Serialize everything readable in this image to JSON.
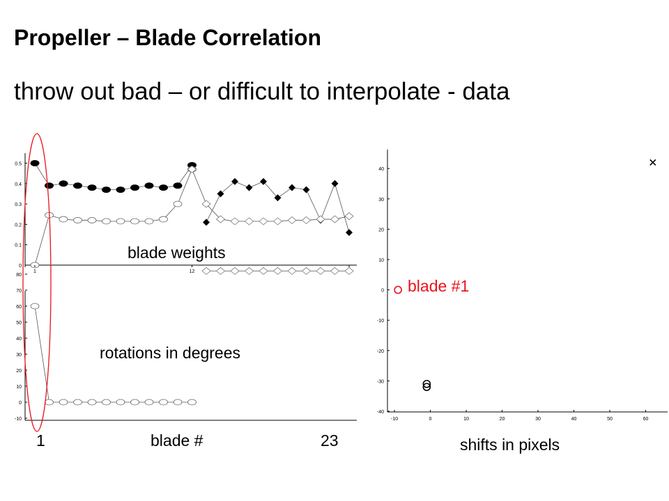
{
  "slide": {
    "title": "Propeller – Blade Correlation",
    "subtitle": "throw out bad – or difficult to interpolate - data"
  },
  "labels": {
    "weights": "blade weights",
    "rotations": "rotations in degrees",
    "blade_axis": "blade #",
    "first_blade": "1",
    "last_blade": "23",
    "shifts": "shifts  in pixels",
    "highlight": "blade #1"
  },
  "colors": {
    "highlight": "#e8141c",
    "ink": "#000000",
    "line": "#555555"
  },
  "chart_data": [
    {
      "type": "line",
      "label": "blade weights",
      "x_ticks": [
        1,
        12,
        23
      ],
      "yticks": [
        0,
        0.1,
        0.2,
        0.3,
        0.4,
        0.5
      ],
      "ylim": [
        0,
        0.5
      ],
      "series": [
        {
          "marker": "filled-circle",
          "x": [
            1,
            2,
            3,
            4,
            5,
            6,
            7,
            8,
            9,
            10,
            11,
            12
          ],
          "values": [
            0.5,
            0.39,
            0.4,
            0.39,
            0.38,
            0.37,
            0.37,
            0.38,
            0.39,
            0.38,
            0.39,
            0.49
          ]
        },
        {
          "marker": "open-circle",
          "x": [
            1,
            2,
            3,
            4,
            5,
            6,
            7,
            8,
            9,
            10,
            11,
            12
          ],
          "values": [
            0,
            0.245,
            0.225,
            0.22,
            0.22,
            0.215,
            0.215,
            0.215,
            0.215,
            0.225,
            0.3,
            0.47
          ]
        },
        {
          "marker": "filled-diamond",
          "x": [
            13,
            14,
            15,
            16,
            17,
            18,
            19,
            20,
            21,
            22,
            23
          ],
          "values": [
            0.21,
            0.35,
            0.41,
            0.38,
            0.41,
            0.33,
            0.38,
            0.37,
            0.22,
            0.4,
            0.16
          ]
        },
        {
          "marker": "open-diamond",
          "x": [
            12,
            13,
            14,
            15,
            16,
            17,
            18,
            19,
            20,
            21,
            22,
            23
          ],
          "values": [
            0.47,
            0.3,
            0.225,
            0.215,
            0.215,
            0.215,
            0.215,
            0.22,
            0.22,
            0.225,
            0.225,
            0.24
          ]
        }
      ]
    },
    {
      "type": "line",
      "label": "rotations in degrees",
      "yticks": [
        -10,
        0,
        10,
        20,
        30,
        40,
        50,
        60,
        70,
        80
      ],
      "ylim": [
        -10,
        85
      ],
      "series": [
        {
          "marker": "open-circle",
          "x": [
            1,
            2,
            3,
            4,
            5,
            6,
            7,
            8,
            9,
            10,
            11,
            12
          ],
          "values": [
            60,
            0,
            0,
            0,
            0,
            0,
            0,
            0,
            0,
            0,
            0,
            0
          ]
        },
        {
          "marker": "open-diamond",
          "x": [
            13,
            14,
            15,
            16,
            17,
            18,
            19,
            20,
            21,
            22,
            23
          ],
          "values": [
            82,
            82,
            82,
            82,
            82,
            82,
            82,
            82,
            82,
            82,
            82
          ]
        }
      ]
    },
    {
      "type": "scatter",
      "xlabel": "shifts  in pixels",
      "xticks": [
        -10,
        0,
        10,
        20,
        30,
        40,
        50,
        60
      ],
      "yticks": [
        -40,
        -30,
        -20,
        -10,
        0,
        10,
        20,
        30,
        40
      ],
      "xlim": [
        -10,
        63
      ],
      "ylim": [
        -40,
        45
      ],
      "points": [
        {
          "x": -9,
          "y": 0,
          "marker": "circle",
          "color": "#e8141c"
        },
        {
          "x": -1,
          "y": -31,
          "marker": "circle",
          "color": "#000000"
        },
        {
          "x": -1,
          "y": -32,
          "marker": "circle",
          "color": "#000000"
        },
        {
          "x": 62,
          "y": 42,
          "marker": "x",
          "color": "#000000"
        }
      ]
    }
  ]
}
